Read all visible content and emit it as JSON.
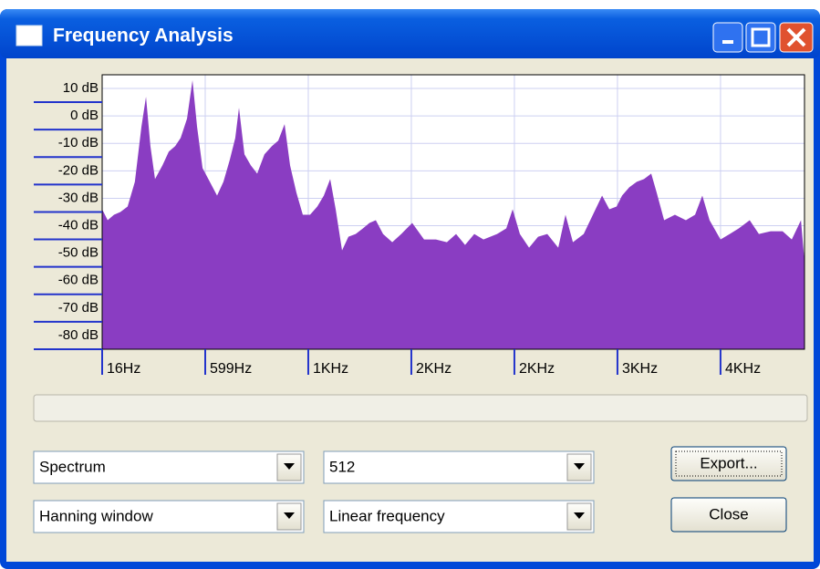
{
  "window": {
    "title": "Frequency Analysis"
  },
  "chart_data": {
    "type": "area",
    "color": "#8a3dc2",
    "grid": true,
    "xlim": [
      16,
      3989
    ],
    "ylim": [
      -85,
      15
    ],
    "xticks": [
      {
        "value": 16,
        "label": "16Hz"
      },
      {
        "value": 599,
        "label": "599Hz"
      },
      {
        "value": 1182,
        "label": "1KHz"
      },
      {
        "value": 1765,
        "label": "2KHz"
      },
      {
        "value": 2348,
        "label": "2KHz"
      },
      {
        "value": 2931,
        "label": "3KHz"
      },
      {
        "value": 3514,
        "label": "4KHz"
      }
    ],
    "yticks": [
      {
        "value": 10,
        "label": "10 dB"
      },
      {
        "value": 0,
        "label": "0 dB"
      },
      {
        "value": -10,
        "label": "-10 dB"
      },
      {
        "value": -20,
        "label": "-20 dB"
      },
      {
        "value": -30,
        "label": "-30 dB"
      },
      {
        "value": -40,
        "label": "-40 dB"
      },
      {
        "value": -50,
        "label": "-50 dB"
      },
      {
        "value": -60,
        "label": "-60 dB"
      },
      {
        "value": -70,
        "label": "-70 dB"
      },
      {
        "value": -80,
        "label": "-80 dB"
      }
    ],
    "x": [
      16,
      47,
      83,
      119,
      160,
      201,
      238,
      264,
      289,
      315,
      357,
      393,
      429,
      460,
      496,
      527,
      553,
      584,
      625,
      666,
      702,
      738,
      769,
      790,
      821,
      857,
      893,
      934,
      976,
      1012,
      1048,
      1079,
      1115,
      1151,
      1192,
      1233,
      1270,
      1306,
      1337,
      1373,
      1409,
      1450,
      1491,
      1528,
      1564,
      1605,
      1657,
      1708,
      1770,
      1837,
      1904,
      1966,
      2018,
      2069,
      2121,
      2173,
      2250,
      2302,
      2338,
      2379,
      2431,
      2482,
      2534,
      2596,
      2637,
      2679,
      2740,
      2792,
      2844,
      2885,
      2926,
      2957,
      2998,
      3040,
      3081,
      3122,
      3153,
      3195,
      3256,
      3318,
      3370,
      3411,
      3452,
      3514,
      3566,
      3617,
      3679,
      3731,
      3798,
      3865,
      3917,
      3969,
      3989
    ],
    "values": [
      -34,
      -38,
      -36,
      -35,
      -33,
      -24,
      -4,
      7,
      -11,
      -23,
      -18,
      -13,
      -11,
      -8,
      -1,
      13,
      -4,
      -19,
      -24,
      -29,
      -24,
      -16,
      -8,
      3,
      -14,
      -18,
      -21,
      -14,
      -11,
      -9,
      -3,
      -18,
      -28,
      -36,
      -36,
      -33,
      -29,
      -23,
      -34,
      -49,
      -44,
      -43,
      -41,
      -39,
      -38,
      -43,
      -46,
      -43,
      -39,
      -45,
      -45,
      -46,
      -43,
      -47,
      -43,
      -45,
      -43,
      -41,
      -34,
      -43,
      -48,
      -44,
      -43,
      -48,
      -36,
      -46,
      -43,
      -36,
      -29,
      -34,
      -33,
      -29,
      -26,
      -24,
      -23,
      -21,
      -28,
      -38,
      -36,
      -38,
      -36,
      -29,
      -38,
      -45,
      -43,
      -41,
      -38,
      -43,
      -42,
      -42,
      -45,
      -38,
      -53
    ]
  },
  "controls": {
    "algorithm": "Spectrum",
    "size": "512",
    "window_function": "Hanning window",
    "axis": "Linear frequency",
    "export": "Export...",
    "close": "Close"
  }
}
